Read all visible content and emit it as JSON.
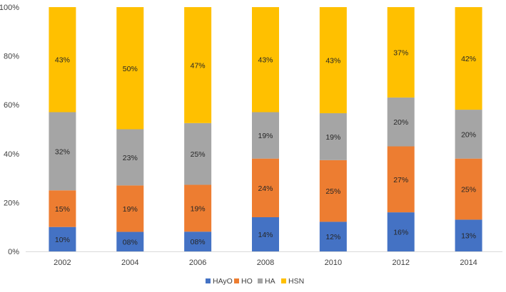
{
  "chart_data": {
    "type": "bar",
    "stacked": true,
    "percent_stacked": true,
    "title": "",
    "xlabel": "",
    "ylabel": "",
    "ylim": [
      0,
      100
    ],
    "y_ticks": [
      "0%",
      "20%",
      "40%",
      "60%",
      "80%",
      "100%"
    ],
    "y_tick_values": [
      0,
      20,
      40,
      60,
      80,
      100
    ],
    "grid": false,
    "legend_position": "bottom-center",
    "categories": [
      "2002",
      "2004",
      "2006",
      "2008",
      "2010",
      "2012",
      "2014"
    ],
    "series": [
      {
        "name": "HAyO",
        "color": "#4472C4",
        "values": [
          10,
          8,
          8,
          14,
          12,
          16,
          13
        ],
        "labels": [
          "10%",
          "08%",
          "08%",
          "14%",
          "12%",
          "16%",
          "13%"
        ]
      },
      {
        "name": "HO",
        "color": "#ED7D31",
        "values": [
          15,
          19,
          19,
          24,
          25,
          27,
          25
        ],
        "labels": [
          "15%",
          "19%",
          "19%",
          "24%",
          "25%",
          "27%",
          "25%"
        ]
      },
      {
        "name": "HA",
        "color": "#A5A5A5",
        "values": [
          32,
          23,
          25,
          19,
          19,
          20,
          20
        ],
        "labels": [
          "32%",
          "23%",
          "25%",
          "19%",
          "19%",
          "20%",
          "20%"
        ]
      },
      {
        "name": "HSN",
        "color": "#FFC000",
        "values": [
          43,
          50,
          47,
          43,
          43,
          37,
          42
        ],
        "labels": [
          "43%",
          "50%",
          "47%",
          "43%",
          "43%",
          "37%",
          "42%"
        ]
      }
    ]
  }
}
